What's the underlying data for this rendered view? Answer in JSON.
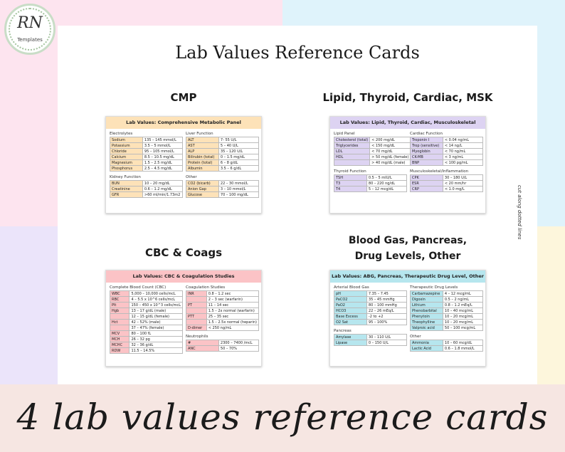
{
  "logo": {
    "initials": "RN",
    "subtitle": "Templates"
  },
  "title": "Lab Values Reference Cards",
  "banner": "4 lab values reference cards",
  "side_note": "cut along dotted lines",
  "colors": {
    "cmp": "#fde2b8",
    "lipid": "#ddd3f2",
    "cbc": "#fbc3c6",
    "abg": "#b6e6ee"
  },
  "sections": {
    "cmp": "CMP",
    "lipid": "Lipid, Thyroid, Cardiac, MSK",
    "cbc": "CBC & Coags",
    "abg_line1": "Blood Gas, Pancreas,",
    "abg_line2": "Drug Levels, Other"
  },
  "cards": [
    {
      "id": "cmp",
      "header": "Lab Values: Comprehensive Metabolic Panel",
      "left": [
        {
          "label": "Electrolytes",
          "rows": [
            [
              "Sodium",
              "135 – 145 mmol/L"
            ],
            [
              "Potassium",
              "3.5 – 5 mmol/L"
            ],
            [
              "Chloride",
              "95 – 105 mmol/L"
            ],
            [
              "Calcium",
              "8.5 – 10.5 mg/dL"
            ],
            [
              "Magnesium",
              "1.5 – 2.5 mg/dL"
            ],
            [
              "Phosphorus",
              "2.5 – 4.5 mg/dL"
            ]
          ]
        },
        {
          "label": "Kidney Function",
          "rows": [
            [
              "BUN",
              "10 – 20 mg/dL"
            ],
            [
              "Creatinine",
              "0.6 – 1.2 mg/dL"
            ],
            [
              "GFR",
              ">60 ml/min/1.73m2"
            ]
          ]
        }
      ],
      "right": [
        {
          "label": "Liver Function",
          "rows": [
            [
              "ALT",
              "7- 55 U/L"
            ],
            [
              "AST",
              "5 – 40 U/L"
            ],
            [
              "ALP",
              "35 – 120 U/L"
            ],
            [
              "Bilirubin (total)",
              "0 – 1.5 mg/dL"
            ],
            [
              "Protein (total)",
              "6 – 8 g/dL"
            ],
            [
              "Albumin",
              "3.5 – 6 g/dL"
            ]
          ]
        },
        {
          "label": "Other",
          "rows": [
            [
              "CO2 (bicarb)",
              "22 – 30 mmol/L"
            ],
            [
              "Anion Gap",
              "3 – 10 mmol/L"
            ],
            [
              "Glucose",
              "70 – 100 mg/dL"
            ]
          ]
        }
      ]
    },
    {
      "id": "lipid",
      "header": "Lab Values: Lipid, Thyroid, Cardiac, Musculoskeletal",
      "left": [
        {
          "label": "Lipid Panel",
          "rows": [
            [
              "Cholesterol (total)",
              "< 200 mg/dL"
            ],
            [
              "Triglycerides",
              "< 150 mg/dL"
            ],
            [
              "LDL",
              "< 70 mg/dL"
            ],
            [
              "HDL",
              "> 50 mg/dL (female)"
            ],
            [
              "",
              "> 40 mg/dL (male)"
            ]
          ]
        },
        {
          "label": "Thyroid Function",
          "rows": [
            [
              "TSH",
              "0.5 – 5 mIU/L"
            ],
            [
              "T3",
              "80 – 220 ng/dL"
            ],
            [
              "T4",
              "5 – 12 mcg/dL"
            ]
          ]
        }
      ],
      "right": [
        {
          "label": "Cardiac Function",
          "rows": [
            [
              "Troponin I",
              "< 0.04 ng/mL"
            ],
            [
              "Trop (sensitive)",
              "< 14 ng/L"
            ],
            [
              "Myoglobin",
              "< 70 ng/mL"
            ],
            [
              "CK-MB",
              "< 3 ng/mL"
            ],
            [
              "BNP",
              "< 100 pg/mL"
            ]
          ]
        },
        {
          "label": "Musculoskeletal/Inflammation",
          "rows": [
            [
              "CPK",
              "30 – 180 U/L"
            ],
            [
              "ESR",
              "< 20 mm/hr"
            ],
            [
              "CRP",
              "< 1.0 mg/L"
            ]
          ]
        }
      ]
    },
    {
      "id": "cbc",
      "header": "Lab Values: CBC & Coagulation Studies",
      "left": [
        {
          "label": "Complete Blood Count (CBC)",
          "rows": [
            [
              "WBC",
              "5,000 – 10,000 cells/mcL"
            ],
            [
              "RBC",
              "4 – 5.5 x 10^6 cells/mcL"
            ],
            [
              "Plt",
              "150 – 450 x 10^3 cells/mcL"
            ],
            [
              "Hgb",
              "13 – 17 g/dL (male)"
            ],
            [
              "",
              "12 – 15 g/dL (female)"
            ],
            [
              "Hct",
              "42 – 52% (male)"
            ],
            [
              "",
              "37 – 47% (female)"
            ],
            [
              "MCV",
              "80 – 100 fL"
            ],
            [
              "MCH",
              "26 – 32 pg"
            ],
            [
              "MCHC",
              "32 – 36 g/dL"
            ],
            [
              "RDW",
              "11.5 – 14.5%"
            ]
          ]
        }
      ],
      "right": [
        {
          "label": "Coagulation Studies",
          "rows": [
            [
              "INR",
              "0.8 – 1.2 sec"
            ],
            [
              "",
              "2 – 3 sec (warfarin)"
            ],
            [
              "PT",
              "11 – 14 sec"
            ],
            [
              "",
              "1.5 – 2x normal (warfarin)"
            ],
            [
              "PTT",
              "25 – 35 sec"
            ],
            [
              "",
              "1.5 – 2.5x normal (heparin)"
            ],
            [
              "D-dimer",
              "< 250 ng/mL"
            ]
          ]
        },
        {
          "label": "Neutrophils",
          "rows": [
            [
              "#",
              "2300 – 7400 /mcL"
            ],
            [
              "ANC",
              "50 – 70%"
            ]
          ]
        }
      ]
    },
    {
      "id": "abg",
      "header": "Lab Values: ABG, Pancreas, Therapeutic Drug Level, Other",
      "left": [
        {
          "label": "Arterial Blood Gas",
          "rows": [
            [
              "pH",
              "7.35 – 7.45"
            ],
            [
              "PaCO2",
              "35 – 45 mmHg"
            ],
            [
              "PaO2",
              "80 – 100 mmHg"
            ],
            [
              "HCO3",
              "22 – 26 mEq/L"
            ],
            [
              "Base Excess",
              "-2 to +2"
            ],
            [
              "O2 Sat",
              "95 – 100%"
            ]
          ]
        },
        {
          "label": "Pancreas",
          "rows": [
            [
              "Amylase",
              "30 – 110 U/L"
            ],
            [
              "Lipase",
              "0 – 150 U/L"
            ]
          ]
        }
      ],
      "right": [
        {
          "label": "Therapeutic Drug Levels",
          "rows": [
            [
              "Carbamazepine",
              "4 – 12 mcg/mL"
            ],
            [
              "Digoxin",
              "0.5 – 2 ng/mL"
            ],
            [
              "Lithium",
              "0.8 – 1.2 mEq/L"
            ],
            [
              "Phenobarbital",
              "10 – 40 mcg/mL"
            ],
            [
              "Phenytoin",
              "10 – 20 mcg/mL"
            ],
            [
              "Theophylline",
              "10 – 20 mcg/mL"
            ],
            [
              "Valproic acid",
              "50 – 100 mcg/mL"
            ]
          ]
        },
        {
          "label": "Other",
          "rows": [
            [
              "Ammonia",
              "10 – 60 mcg/dL"
            ],
            [
              "Lactic Acid",
              "0.6 – 1.8 mmol/L"
            ]
          ]
        }
      ]
    }
  ]
}
